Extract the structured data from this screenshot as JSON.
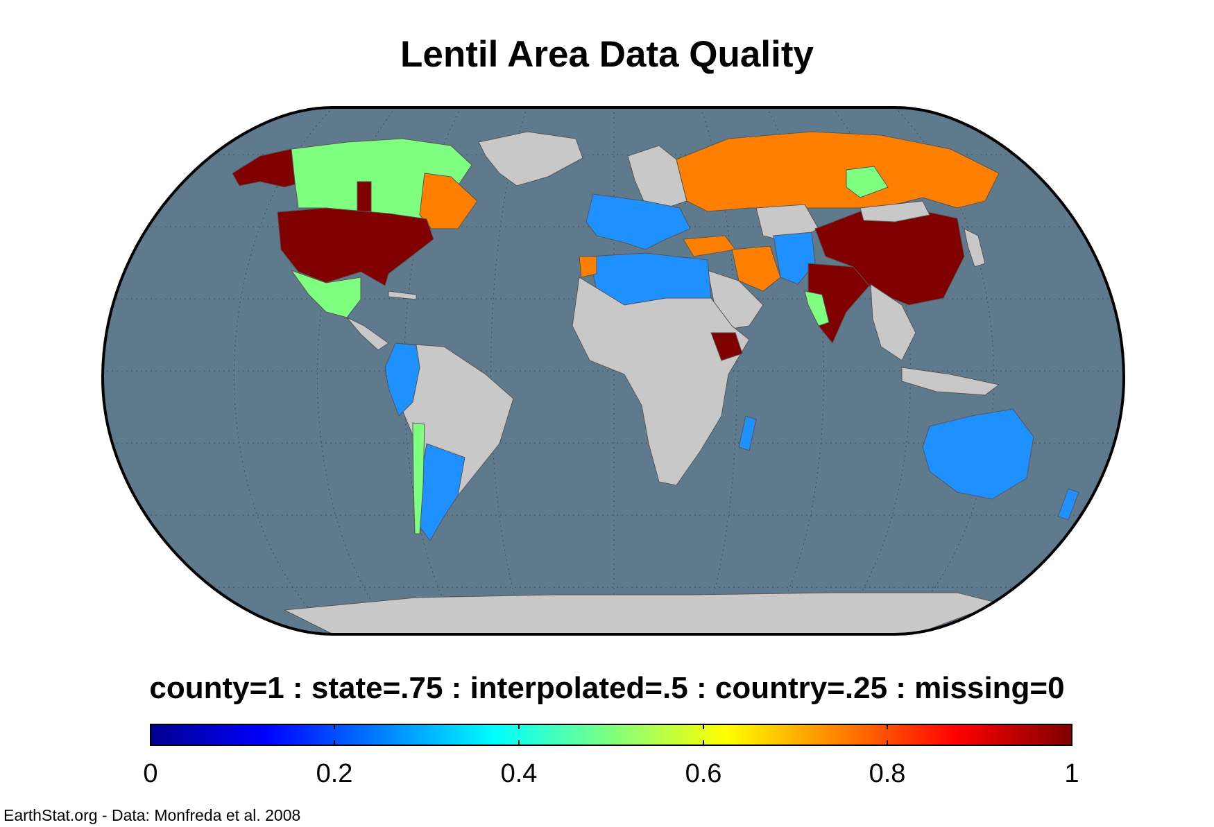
{
  "title": "Lentil Area Data Quality",
  "legend": {
    "caption": "county=1 : state=.75 : interpolated=.5 : country=.25 : missing=0",
    "ticks": [
      "0",
      "0.2",
      "0.4",
      "0.6",
      "0.8",
      "1"
    ],
    "range": [
      0,
      1
    ],
    "colormap": "jet"
  },
  "credit": "EarthStat.org - Data: Monfreda et al. 2008",
  "colors": {
    "ocean": "#5f7a8c",
    "missing": "#c8c8c8",
    "country": "#1e90ff",
    "interpolated": "#7fff7f",
    "state": "#ff8000",
    "county": "#800000",
    "frame": "#000000"
  },
  "regions": [
    {
      "name": "Alaska",
      "quality": "county"
    },
    {
      "name": "United States",
      "quality": "county"
    },
    {
      "name": "Canada",
      "quality": "interpolated"
    },
    {
      "name": "Canadian Prairies",
      "quality": "county"
    },
    {
      "name": "Quebec",
      "quality": "state"
    },
    {
      "name": "Greenland",
      "quality": "missing"
    },
    {
      "name": "Mexico",
      "quality": "interpolated"
    },
    {
      "name": "Central America",
      "quality": "missing"
    },
    {
      "name": "Colombia / Ecuador / Peru",
      "quality": "country"
    },
    {
      "name": "Brazil / South America",
      "quality": "missing"
    },
    {
      "name": "Argentina",
      "quality": "country"
    },
    {
      "name": "Chile",
      "quality": "interpolated"
    },
    {
      "name": "Europe (west)",
      "quality": "country"
    },
    {
      "name": "Europe (north)",
      "quality": "missing"
    },
    {
      "name": "Russia",
      "quality": "state"
    },
    {
      "name": "Kazakhstan",
      "quality": "missing"
    },
    {
      "name": "Turkey",
      "quality": "state"
    },
    {
      "name": "Iran",
      "quality": "state"
    },
    {
      "name": "Morocco",
      "quality": "state"
    },
    {
      "name": "North Africa",
      "quality": "country"
    },
    {
      "name": "Sub-Saharan Africa",
      "quality": "missing"
    },
    {
      "name": "Ethiopia",
      "quality": "county"
    },
    {
      "name": "Madagascar",
      "quality": "country"
    },
    {
      "name": "Arabia",
      "quality": "missing"
    },
    {
      "name": "Afghanistan / Pakistan",
      "quality": "country"
    },
    {
      "name": "India",
      "quality": "county"
    },
    {
      "name": "China",
      "quality": "county"
    },
    {
      "name": "Mongolia",
      "quality": "missing"
    },
    {
      "name": "Southeast Asia",
      "quality": "missing"
    },
    {
      "name": "Indonesia",
      "quality": "missing"
    },
    {
      "name": "Australia",
      "quality": "country"
    },
    {
      "name": "New Zealand",
      "quality": "country"
    },
    {
      "name": "Antarctica",
      "quality": "missing"
    }
  ]
}
